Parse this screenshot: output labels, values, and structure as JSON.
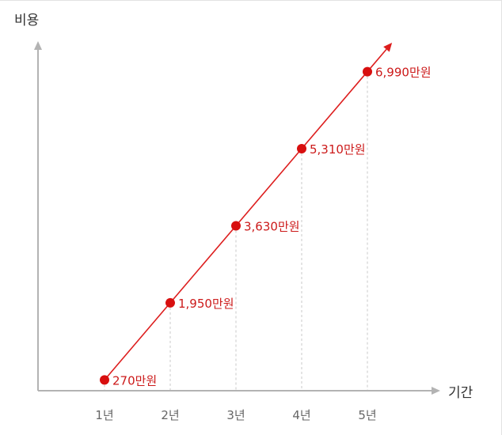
{
  "chart_data": {
    "type": "line",
    "xlabel": "기간",
    "ylabel": "비용",
    "categories": [
      "1년",
      "2년",
      "3년",
      "4년",
      "5년"
    ],
    "values": [
      270,
      1950,
      3630,
      5310,
      6990
    ],
    "data_labels": [
      "270만원",
      "1,950만원",
      "3,630만원",
      "5,310만원",
      "6,990만원"
    ],
    "unit": "만원",
    "ylim": [
      -1000,
      8000
    ],
    "grid": false,
    "legend": "none",
    "colors": {
      "series": "#dd1e1e",
      "point": "#d80f0f",
      "label": "#cc1a1a",
      "axis": "#b3b3b3",
      "guide": "#c8c8c8"
    }
  }
}
